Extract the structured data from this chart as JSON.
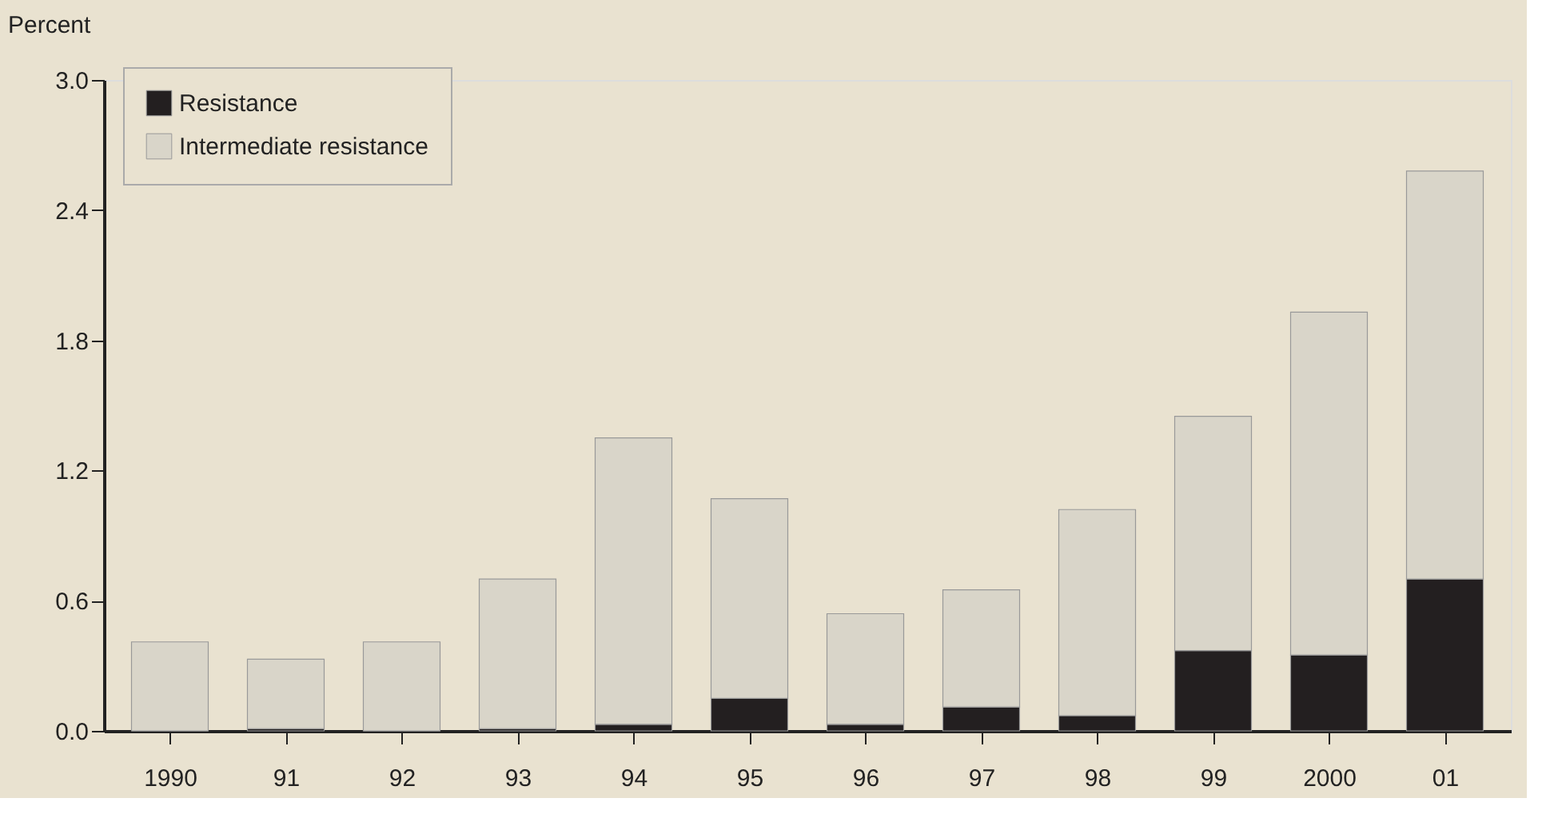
{
  "chart_data": {
    "type": "bar",
    "stacked": true,
    "ylabel": "Percent",
    "categories": [
      "1990",
      "91",
      "92",
      "93",
      "94",
      "95",
      "96",
      "97",
      "98",
      "99",
      "2000",
      "01"
    ],
    "series": [
      {
        "name": "Resistance",
        "color": "#231f20",
        "values": [
          0,
          0.01,
          0,
          0.01,
          0.03,
          0.15,
          0.03,
          0.11,
          0.07,
          0.37,
          0.35,
          0.7
        ]
      },
      {
        "name": "Intermediate resistance",
        "color": "#d9d5c9",
        "values": [
          0.41,
          0.32,
          0.41,
          0.69,
          1.32,
          0.92,
          0.51,
          0.54,
          0.95,
          1.08,
          1.58,
          1.88
        ]
      }
    ],
    "ylim": [
      0,
      3.0
    ],
    "yticks": [
      {
        "value": 0,
        "label": "0.0"
      },
      {
        "value": 0.6,
        "label": "0.6"
      },
      {
        "value": 1.2,
        "label": "1.2"
      },
      {
        "value": 1.8,
        "label": "1.8"
      },
      {
        "value": 2.4,
        "label": "2.4"
      },
      {
        "value": 3.0,
        "label": "3.0"
      }
    ],
    "grid": false,
    "legend": "top left"
  }
}
